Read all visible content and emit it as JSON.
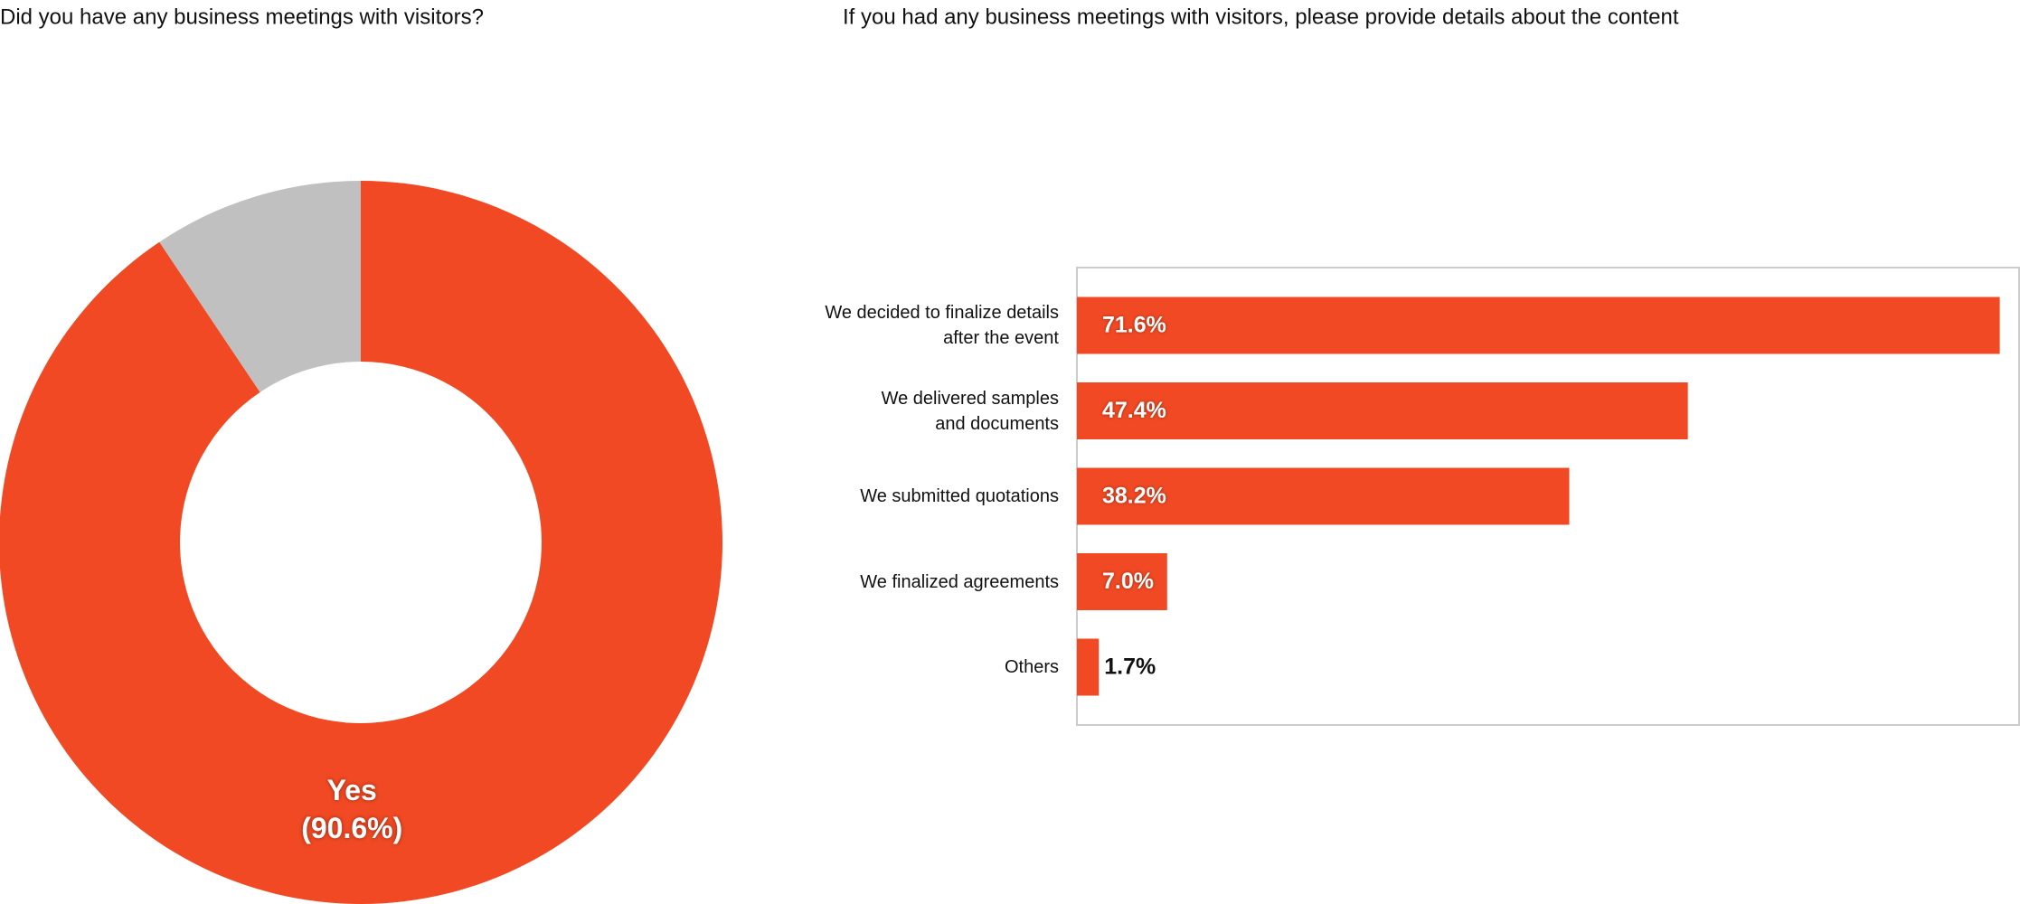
{
  "chart_data": [
    {
      "type": "pie",
      "title": "Did you have any business meetings with visitors?",
      "categories": [
        "Yes",
        null
      ],
      "values": [
        90.6,
        9.4
      ],
      "value_labels": [
        "(90.6%)",
        null
      ],
      "colors": [
        "#f04923",
        "#c0c0c0"
      ],
      "hole": 0.5
    },
    {
      "type": "bar",
      "orientation": "horizontal",
      "title": "If you had any business meetings with visitors, please provide details about the content",
      "categories": [
        "We decided to finalize details\nafter the event",
        "We delivered samples\nand documents",
        "We submitted quotations",
        "We finalized agreements",
        "Others"
      ],
      "values": [
        71.6,
        47.4,
        38.2,
        7.0,
        1.7
      ],
      "value_labels": [
        "71.6%",
        "47.4%",
        "38.2%",
        "7.0%",
        "1.7%"
      ],
      "color": "#f04923",
      "xlim": [
        0,
        73.1
      ]
    }
  ]
}
